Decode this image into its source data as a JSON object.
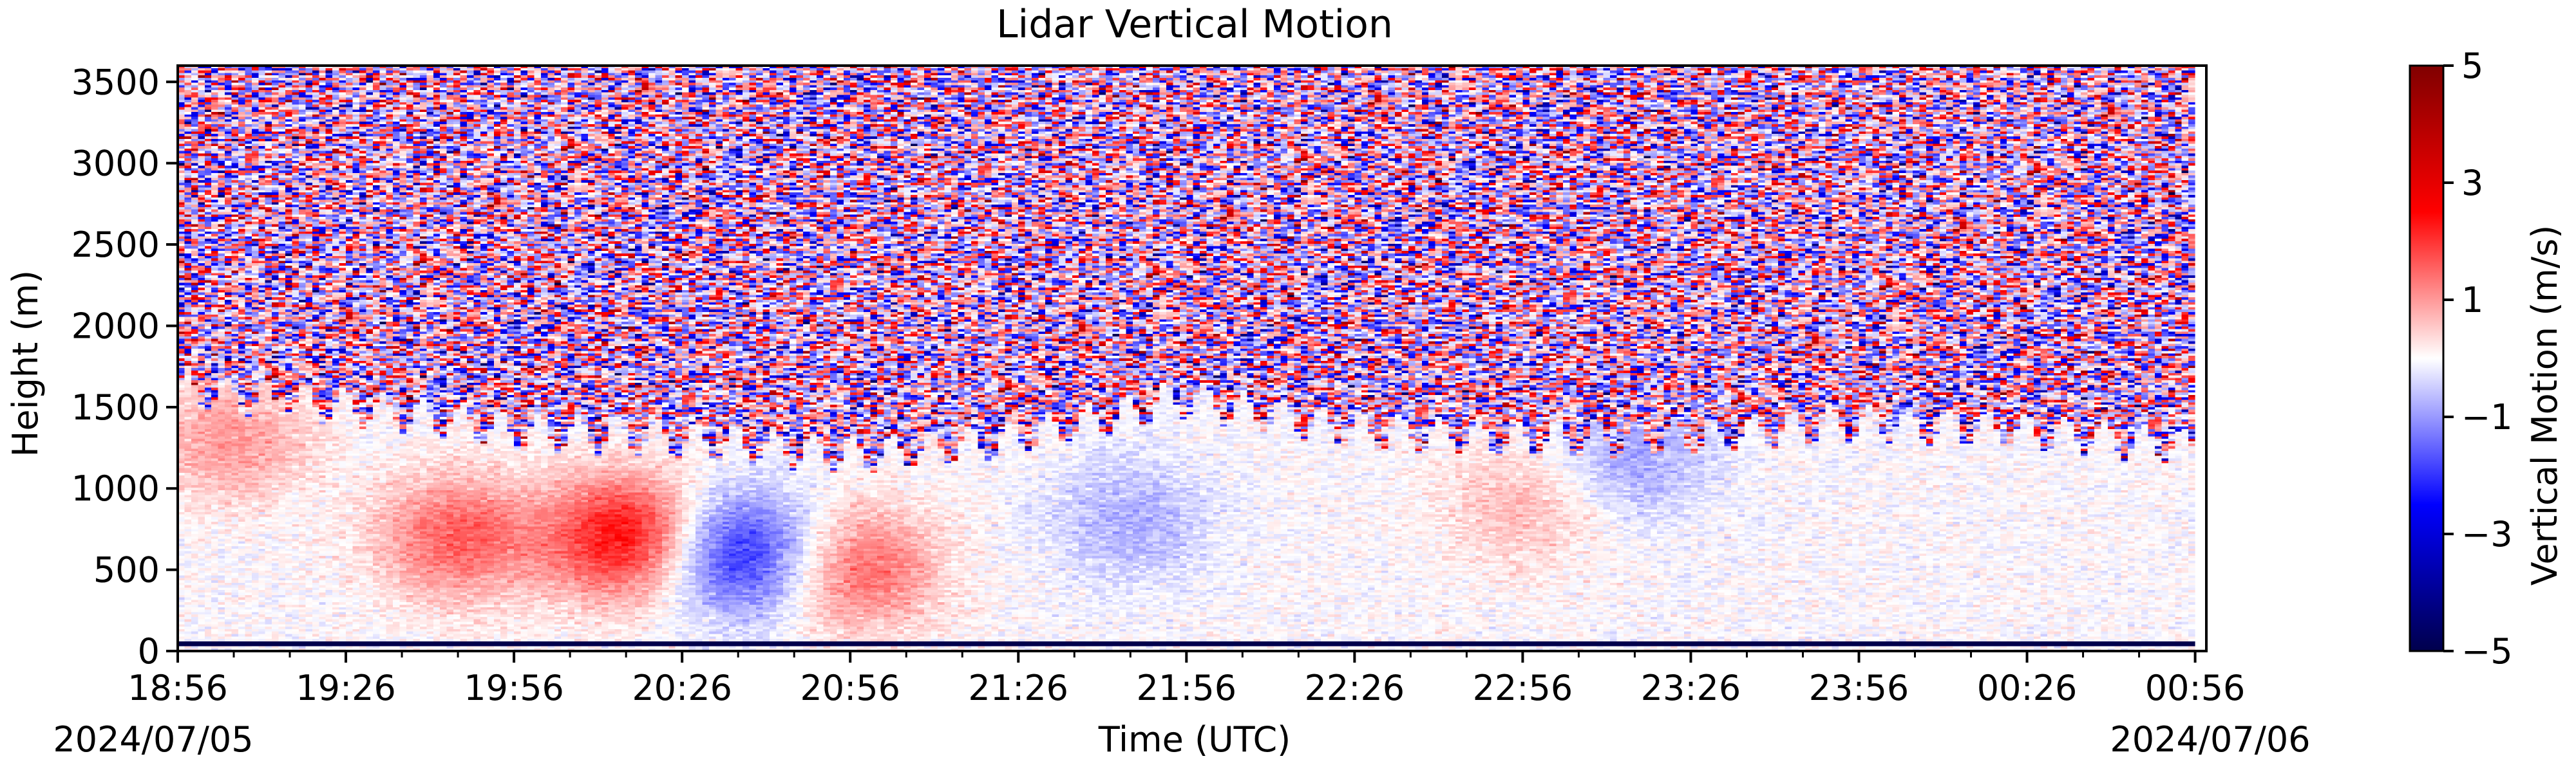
{
  "chart_data": {
    "type": "heatmap",
    "title": "Lidar Vertical Motion",
    "xlabel": "Time (UTC)",
    "ylabel": "Height (m)",
    "colorbar_label": "Vertical Motion (m/s)",
    "colormap": "seismic",
    "colormap_stops": [
      "#00004c",
      "#0000ff",
      "#ffffff",
      "#ff0000",
      "#800000"
    ],
    "vmin": -5,
    "vmax": 5,
    "x_start": "2024-07-05 18:56",
    "x_end": "2024-07-06 00:56",
    "xlim": [
      "2024-07-05 18:56",
      "2024-07-06 00:58"
    ],
    "ylim": [
      0,
      3600
    ],
    "x_ticks": [
      "18:56",
      "19:26",
      "19:56",
      "20:26",
      "20:56",
      "21:26",
      "21:56",
      "22:26",
      "22:56",
      "23:26",
      "23:56",
      "00:26",
      "00:56"
    ],
    "x_date_labels": {
      "left": "2024/07/05",
      "right": "2024/07/06"
    },
    "y_ticks": [
      0,
      500,
      1000,
      1500,
      2000,
      2500,
      3000,
      3500
    ],
    "colorbar_ticks": [
      5,
      3,
      1,
      -1,
      -3,
      -5
    ],
    "colorbar_tick_labels": [
      "5",
      "3",
      "1",
      "−1",
      "−3",
      "−5"
    ],
    "features": {
      "noise_top_height_m": [
        1600,
        1500,
        1350,
        1300,
        1200,
        1300,
        1550,
        1350,
        1300,
        1300,
        1400,
        1350,
        1250
      ],
      "updraft_patches": [
        {
          "time": "19:06",
          "height_m": 1300,
          "value": 1.0
        },
        {
          "time": "19:46",
          "height_m": 700,
          "value": 1.6
        },
        {
          "time": "20:16",
          "height_m": 700,
          "value": 2.5
        },
        {
          "time": "20:58",
          "height_m": 500,
          "value": 1.5
        },
        {
          "time": "22:56",
          "height_m": 900,
          "value": 0.7
        }
      ],
      "downdraft_patches": [
        {
          "time": "20:36",
          "height_m": 600,
          "value": -2.2
        },
        {
          "time": "21:46",
          "height_m": 800,
          "value": -0.8
        },
        {
          "time": "23:16",
          "height_m": 1200,
          "value": -0.9
        }
      ],
      "surface_band_height_m": 50
    }
  }
}
